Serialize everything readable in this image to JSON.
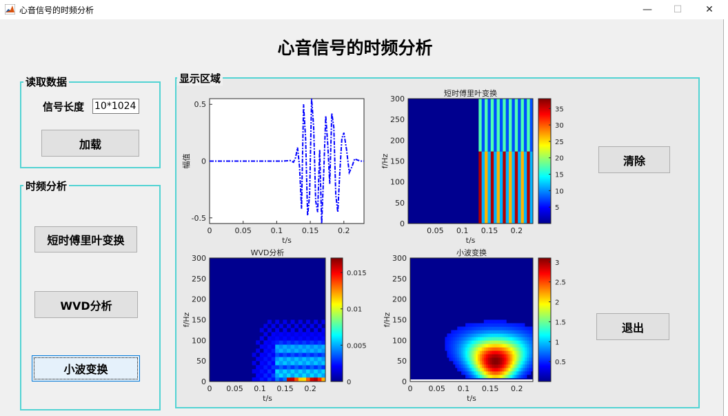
{
  "window": {
    "title": "心音信号的时频分析",
    "minimize_glyph": "—",
    "maximize_glyph": "☐",
    "close_glyph": "✕",
    "icon": "matlab-icon"
  },
  "main_title": "心音信号的时频分析",
  "read_panel": {
    "title": "读取数据",
    "signal_length_label": "信号长度",
    "signal_length_value": "10*1024",
    "load_button": "加载"
  },
  "tf_panel": {
    "title": "时频分析",
    "stft_button": "短时傅里叶变换",
    "wvd_button": "WVD分析",
    "wavelet_button": "小波变换"
  },
  "display_panel": {
    "title": "显示区域",
    "clear_button": "清除",
    "exit_button": "退出"
  },
  "colors": {
    "panel_border": "#52d3d3",
    "signal_line": "#0000ff",
    "jet_low": "#00008f",
    "jet_high": "#800000"
  },
  "chart_data": [
    {
      "type": "line",
      "title": "",
      "xlabel": "t/s",
      "ylabel": "幅值",
      "xlim": [
        0,
        0.23
      ],
      "ylim": [
        -0.55,
        0.55
      ],
      "xticks": [
        "0",
        "0.05",
        "0.1",
        "0.15",
        "0.2"
      ],
      "yticks": [
        "0.5",
        "0",
        "-0.5"
      ],
      "line_style": "dash-dot",
      "series": [
        {
          "x": [
            0,
            0.02,
            0.04,
            0.06,
            0.08,
            0.1,
            0.11,
            0.12,
            0.125,
            0.128,
            0.131,
            0.134,
            0.137,
            0.14,
            0.143,
            0.146,
            0.149,
            0.152,
            0.155,
            0.158,
            0.161,
            0.164,
            0.167,
            0.17,
            0.173,
            0.176,
            0.179,
            0.182,
            0.185,
            0.188,
            0.191,
            0.194,
            0.197,
            0.2,
            0.204,
            0.208,
            0.212,
            0.216,
            0.22,
            0.225,
            0.23
          ],
          "y": [
            0,
            0,
            0,
            0,
            0,
            0,
            0,
            0.005,
            -0.01,
            0.03,
            0.12,
            -0.05,
            -0.42,
            0.5,
            0.2,
            -0.48,
            -0.3,
            0.55,
            0.3,
            -0.35,
            -0.45,
            0.1,
            -0.55,
            -0.1,
            0.4,
            0.15,
            -0.2,
            0.42,
            0.3,
            -0.3,
            -0.45,
            -0.1,
            0.2,
            0.25,
            0.1,
            -0.1,
            -0.05,
            0.02,
            0.01,
            0,
            0
          ]
        }
      ]
    },
    {
      "type": "heatmap",
      "title": "短时傅里叶变换",
      "xlabel": "t/s",
      "ylabel": "f/Hz",
      "xlim": [
        0,
        0.23
      ],
      "ylim": [
        0,
        300
      ],
      "xticks": [
        "0.05",
        "0.1",
        "0.15",
        "0.2"
      ],
      "yticks": [
        "300",
        "250",
        "200",
        "150",
        "100",
        "50",
        "0"
      ],
      "colorbar_range": [
        0,
        38
      ],
      "colorbar_ticks": [
        "35",
        "30",
        "25",
        "20",
        "15",
        "10",
        "5"
      ]
    },
    {
      "type": "heatmap",
      "title": "WVD分析",
      "xlabel": "t/s",
      "ylabel": "f/Hz",
      "xlim": [
        0,
        0.23
      ],
      "ylim": [
        0,
        300
      ],
      "xticks": [
        "0",
        "0.05",
        "0.1",
        "0.15",
        "0.2"
      ],
      "yticks": [
        "300",
        "250",
        "200",
        "150",
        "100",
        "50",
        "0"
      ],
      "colorbar_range": [
        0,
        0.017
      ],
      "colorbar_ticks": [
        "0.015",
        "0.01",
        "0.005",
        "0"
      ]
    },
    {
      "type": "heatmap",
      "title": "小波变换",
      "xlabel": "t/s",
      "ylabel": "f/Hz",
      "xlim": [
        0,
        0.23
      ],
      "ylim": [
        0,
        300
      ],
      "xticks": [
        "0",
        "0.05",
        "0.1",
        "0.15",
        "0.2"
      ],
      "yticks": [
        "300",
        "250",
        "200",
        "150",
        "100",
        "50",
        "0"
      ],
      "colorbar_range": [
        0,
        3.1
      ],
      "colorbar_ticks": [
        "3",
        "2.5",
        "2",
        "1.5",
        "1",
        "0.5"
      ]
    }
  ]
}
